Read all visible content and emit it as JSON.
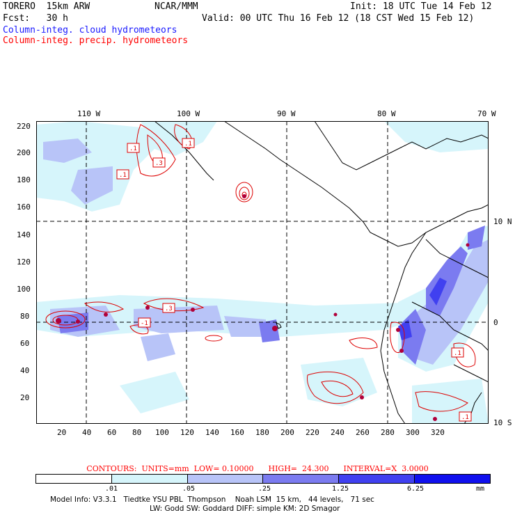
{
  "header": {
    "model": "TORERO  15km ARW",
    "org": "NCAR/MMM",
    "init": "Init: 18 UTC Tue 14 Feb 12",
    "fcst": "Fcst:   30 h",
    "valid": "Valid: 00 UTC Thu 16 Feb 12 (18 CST Wed 15 Feb 12)"
  },
  "legend": {
    "cloud": "Column-integ. cloud hydrometeors",
    "precip": "Column-integ. precip. hydrometeors"
  },
  "map": {
    "top_lon_labels": [
      "110 W",
      "100 W",
      "90 W",
      "80 W",
      "70 W"
    ],
    "right_lat_labels": [
      "10 N",
      "0",
      "10 S"
    ],
    "y_grid_labels": [
      "220",
      "200",
      "180",
      "160",
      "140",
      "120",
      "100",
      "80",
      "60",
      "40",
      "20"
    ],
    "x_grid_labels": [
      "20",
      "40",
      "60",
      "80",
      "100",
      "120",
      "140",
      "160",
      "180",
      "200",
      "220",
      "240",
      "260",
      "280",
      "300",
      "320"
    ],
    "contour_labels": [
      ".1",
      ".1",
      ".3",
      ".1",
      ".3",
      "-1",
      ".1",
      ".1"
    ]
  },
  "contours_line": "CONTOURS:  UNITS=mm  LOW= 0.10000      HIGH=  24.300      INTERVAL=X  3.0000",
  "colorbar": {
    "labels": [
      ".01",
      ".05",
      ".25",
      "1.25",
      "6.25",
      "mm"
    ],
    "colors": [
      "#ffffff",
      "#d6f5fb",
      "#b8c4f8",
      "#7b7bf0",
      "#4040f0",
      "#1010ee"
    ]
  },
  "model_info": {
    "line1": "Model Info: V3.3.1   Tiedtke YSU PBL  Thompson    Noah LSM  15 km,   44 levels,   71 sec",
    "line2": "LW: Godd SW: Goddard DIFF: simple KM: 2D Smagor"
  }
}
